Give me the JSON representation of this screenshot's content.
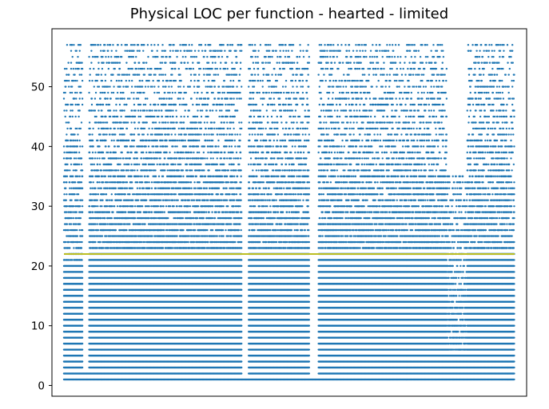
{
  "chart_data": {
    "type": "scatter",
    "title": "Physical LOC per function - hearted - limited",
    "xlabel": "",
    "ylabel": "",
    "x_tick_labels": [],
    "y_ticks": [
      0,
      10,
      20,
      30,
      40,
      50
    ],
    "y_tick_labels": [
      "0",
      "10",
      "20",
      "30",
      "40",
      "50"
    ],
    "xlim": [
      0,
      10000
    ],
    "ylim": [
      -1.8,
      59.7
    ],
    "grid": false,
    "x_is_index": true,
    "y_values_are_integers": true,
    "series": [
      {
        "type": "scatter",
        "color": "#1f77b4",
        "marker_size_px": 2.4,
        "point_count": 10000,
        "y_min": 1,
        "y_max": 57,
        "density_profile": [
          {
            "x_range": [
              0,
              180
            ],
            "dense_to": 20,
            "sparse_to": 57
          },
          {
            "x_range": [
              180,
              420
            ],
            "dense_to": 20,
            "sparse_to": 57
          },
          {
            "x_range": [
              420,
              560
            ],
            "dense_to": 2,
            "sparse_to": 2
          },
          {
            "x_range": [
              560,
              3950
            ],
            "dense_to": 22,
            "sparse_to": 57
          },
          {
            "x_range": [
              3950,
              4100
            ],
            "dense_to": 1,
            "sparse_to": 1
          },
          {
            "x_range": [
              4100,
              5450
            ],
            "dense_to": 22,
            "sparse_to": 57
          },
          {
            "x_range": [
              5450,
              5650
            ],
            "dense_to": 1,
            "sparse_to": 1
          },
          {
            "x_range": [
              5650,
              8500
            ],
            "dense_to": 22,
            "sparse_to": 57
          },
          {
            "x_range": [
              8500,
              8950
            ],
            "dense_to": 5,
            "sparse_to": 35
          },
          {
            "x_range": [
              8950,
              10000
            ],
            "dense_to": 22,
            "sparse_to": 57
          }
        ]
      },
      {
        "type": "hline",
        "color": "#bcbd22",
        "y": 22
      }
    ]
  }
}
